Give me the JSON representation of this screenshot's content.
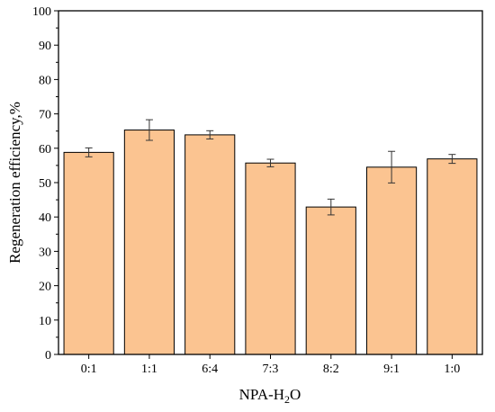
{
  "chart_data": {
    "type": "bar",
    "categories": [
      "0:1",
      "1:1",
      "6:4",
      "7:3",
      "8:2",
      "9:1",
      "1:0"
    ],
    "values": [
      58.8,
      65.3,
      63.9,
      55.7,
      42.9,
      54.5,
      56.9
    ],
    "errors": [
      1.3,
      3.0,
      1.2,
      1.1,
      2.3,
      4.6,
      1.3
    ],
    "xlabel": "NPA-H2O",
    "xlabel_main": "NPA-H",
    "xlabel_sub": "2",
    "xlabel_tail": "O",
    "ylabel": "Regeneration efficiency,%",
    "ylim": [
      0,
      100
    ],
    "yticks": [
      "0",
      "10",
      "20",
      "30",
      "40",
      "50",
      "60",
      "70",
      "80",
      "90",
      "100"
    ],
    "grid": false,
    "bar_color": "#fbc491"
  }
}
